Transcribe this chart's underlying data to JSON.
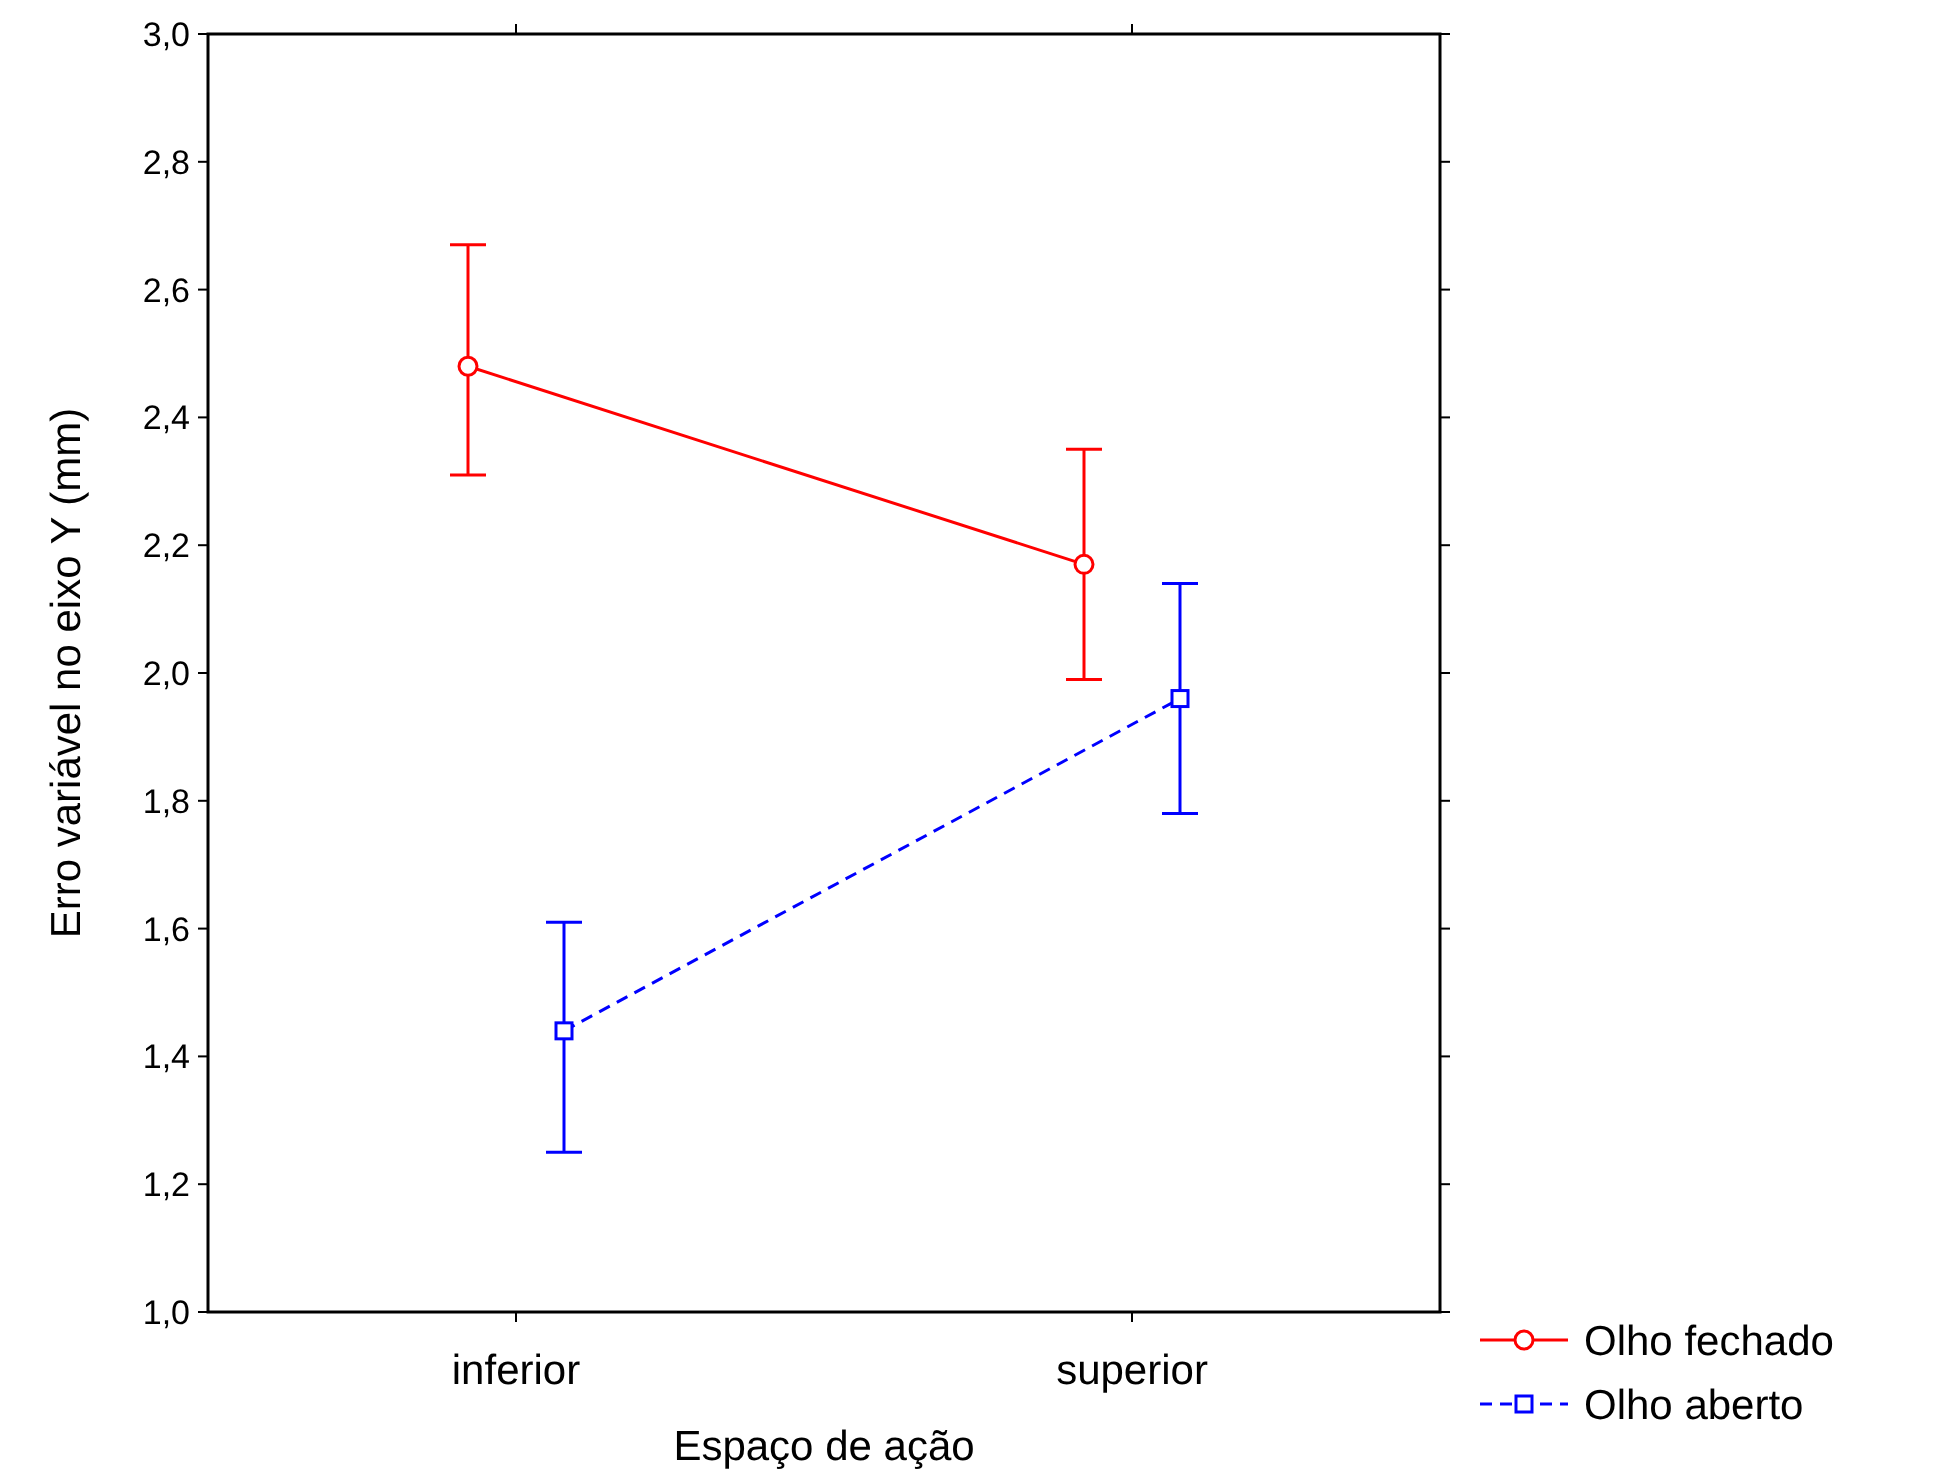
{
  "chart_data": {
    "type": "line",
    "xlabel": "Espaço de ação",
    "ylabel": "Erro variável no eixo Y (mm)",
    "categories": [
      "inferior",
      "superior"
    ],
    "ylim": [
      1.0,
      3.0
    ],
    "yticks": [
      {
        "value": 1.0,
        "label": "1,0"
      },
      {
        "value": 1.2,
        "label": "1,2"
      },
      {
        "value": 1.4,
        "label": "1,4"
      },
      {
        "value": 1.6,
        "label": "1,6"
      },
      {
        "value": 1.8,
        "label": "1,8"
      },
      {
        "value": 2.0,
        "label": "2,0"
      },
      {
        "value": 2.2,
        "label": "2,2"
      },
      {
        "value": 2.4,
        "label": "2,4"
      },
      {
        "value": 2.6,
        "label": "2,6"
      },
      {
        "value": 2.8,
        "label": "2,8"
      },
      {
        "value": 3.0,
        "label": "3,0"
      }
    ],
    "grid": false,
    "legend": "bottom right",
    "series": [
      {
        "name": "Olho fechado",
        "color": "#ff0000",
        "values": [
          2.48,
          2.17
        ],
        "errors": [
          [
            2.31,
            2.67
          ],
          [
            1.99,
            2.35
          ]
        ],
        "marker": "circle",
        "line_style": "solid"
      },
      {
        "name": "Olho aberto",
        "color": "#0000ff",
        "values": [
          1.44,
          1.96
        ],
        "errors": [
          [
            1.25,
            1.61
          ],
          [
            1.78,
            2.14
          ]
        ],
        "marker": "square",
        "line_style": "dashed"
      }
    ]
  }
}
